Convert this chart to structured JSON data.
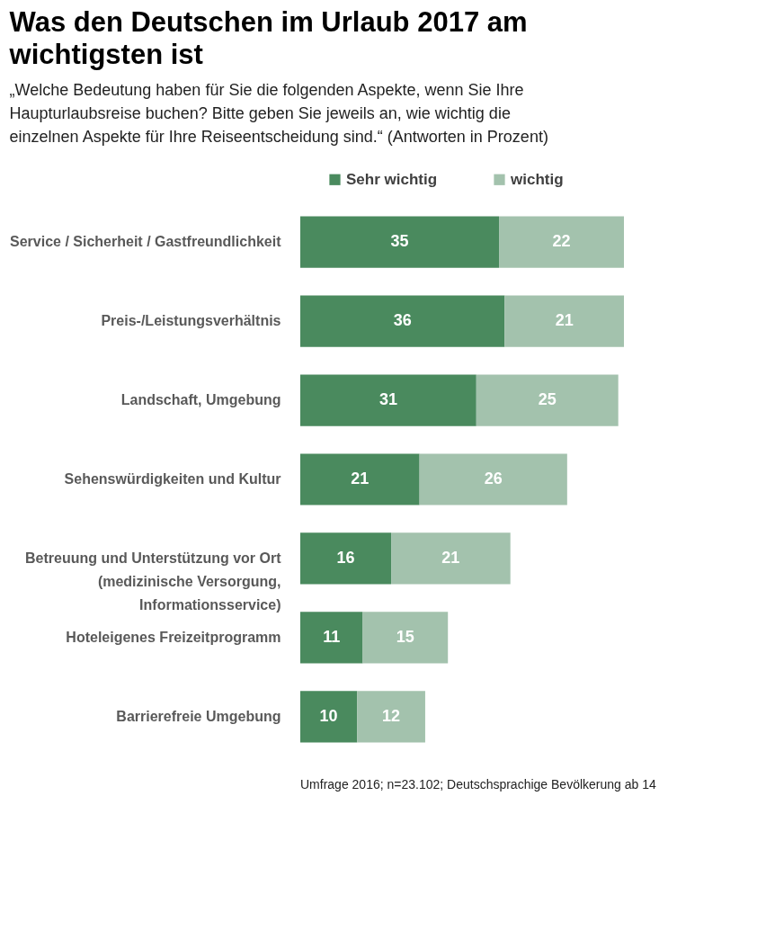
{
  "chart_data": {
    "type": "bar",
    "orientation": "horizontal",
    "stacked": true,
    "data_labels": true,
    "legend": "top",
    "title": "Was den Deutschen im Urlaub  2017 am wichtigsten ist",
    "subtitle": "„Welche Bedeutung haben für Sie die folgenden Aspekte, wenn Sie Ihre Haupturlaubsreise buchen? Bitte geben Sie jeweils an, wie wichtig die einzelnen Aspekte für Ihre Reiseentscheidung sind.“ (Antworten in Prozent)",
    "categories": [
      "Service / Sicherheit / Gastfreundlichkeit",
      "Preis-/Leistungsverhältnis",
      "Landschaft, Umgebung",
      "Sehenswürdigkeiten und Kultur",
      "Betreuung und Unterstützung vor Ort\n(medizinische Versorgung,\nInformationsservice)",
      "Hoteleigenes Freizeitprogramm",
      "Barrierefreie Umgebung"
    ],
    "series": [
      {
        "name": "Sehr wichtig",
        "color": "#4a8a5e",
        "values": [
          35,
          36,
          31,
          21,
          16,
          11,
          10
        ]
      },
      {
        "name": "wichtig",
        "color": "#a3c2ad",
        "values": [
          22,
          21,
          25,
          26,
          21,
          15,
          12
        ]
      }
    ],
    "annotations": [
      "Umfrage 2016; n=23.102; Deutschsprachige Bevölkerung ab 14"
    ]
  }
}
